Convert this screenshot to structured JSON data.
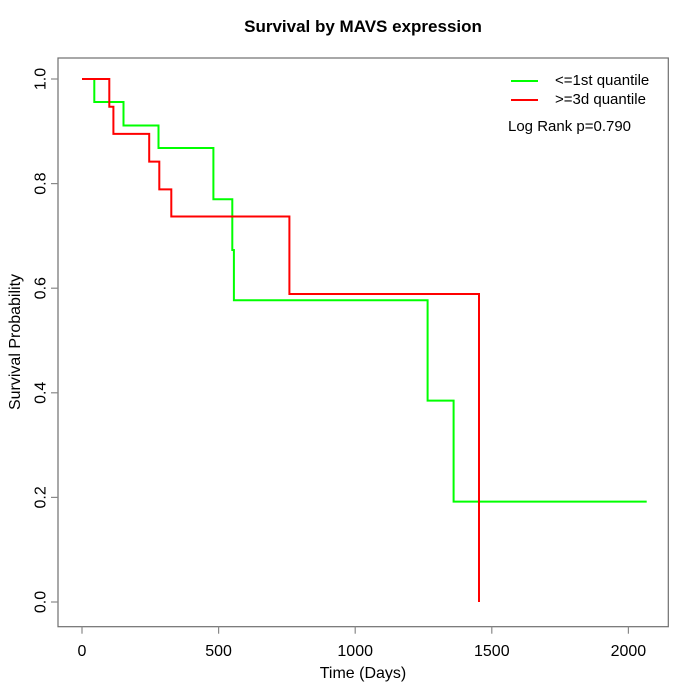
{
  "figure": {
    "background": "#ffffff"
  },
  "colors": {
    "box_border": "#6e6e6e",
    "tick": "#888888",
    "text": "#000000"
  },
  "chart_data": {
    "type": "line",
    "subtype": "kaplan-meier-step",
    "title": "Survival by MAVS expression",
    "xlabel": "Time (Days)",
    "ylabel": "Survival Probability",
    "xlim": [
      0,
      2100
    ],
    "ylim": [
      0.0,
      1.0
    ],
    "grid": false,
    "legend_position": "top-right",
    "annotation": "Log Rank p=0.790",
    "x_ticks": [
      0,
      500,
      1000,
      1500,
      2000
    ],
    "x_tick_labels": [
      "0",
      "500",
      "1000",
      "1500",
      "2000"
    ],
    "y_ticks": [
      0.0,
      0.2,
      0.4,
      0.6,
      0.8,
      1.0
    ],
    "y_tick_labels": [
      "0.0",
      "0.2",
      "0.4",
      "0.6",
      "0.8",
      "1.0"
    ],
    "series": [
      {
        "name": "<=1st quantile",
        "color": "#00ff00",
        "points": [
          [
            0,
            1.0
          ],
          [
            45,
            1.0
          ],
          [
            45,
            0.956
          ],
          [
            152,
            0.956
          ],
          [
            152,
            0.911
          ],
          [
            280,
            0.911
          ],
          [
            280,
            0.868
          ],
          [
            481,
            0.868
          ],
          [
            481,
            0.77
          ],
          [
            550,
            0.77
          ],
          [
            550,
            0.673
          ],
          [
            556,
            0.673
          ],
          [
            556,
            0.577
          ],
          [
            1265,
            0.577
          ],
          [
            1265,
            0.385
          ],
          [
            1360,
            0.385
          ],
          [
            1360,
            0.192
          ],
          [
            2067,
            0.192
          ]
        ]
      },
      {
        "name": ">=3d quantile",
        "color": "#ff0000",
        "points": [
          [
            0,
            1.0
          ],
          [
            100,
            1.0
          ],
          [
            100,
            0.947
          ],
          [
            115,
            0.947
          ],
          [
            115,
            0.895
          ],
          [
            246,
            0.895
          ],
          [
            246,
            0.842
          ],
          [
            283,
            0.842
          ],
          [
            283,
            0.789
          ],
          [
            327,
            0.789
          ],
          [
            327,
            0.737
          ],
          [
            759,
            0.737
          ],
          [
            759,
            0.589
          ],
          [
            1453,
            0.589
          ],
          [
            1453,
            0.0
          ]
        ]
      }
    ]
  }
}
